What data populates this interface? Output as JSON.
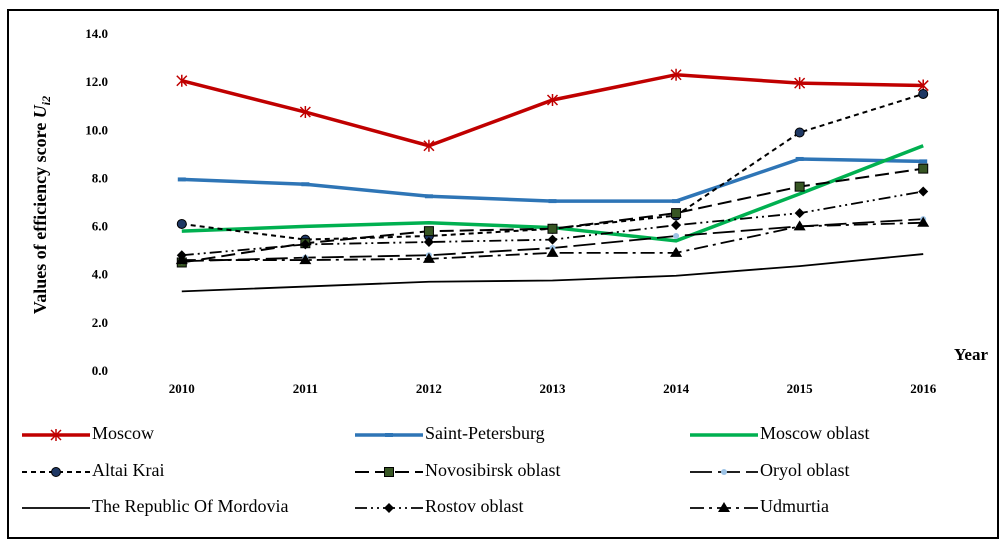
{
  "chart_data": {
    "type": "line",
    "ylabel": "Values of efficiency score",
    "ylabel_symbol": "U",
    "ylabel_subscript": "i2",
    "xlabel": "Year",
    "categories": [
      "2010",
      "2011",
      "2012",
      "2013",
      "2014",
      "2015",
      "2016"
    ],
    "ylim": [
      0,
      14
    ],
    "yticks": [
      {
        "value": 0,
        "label": "0.0"
      },
      {
        "value": 2,
        "label": "2.0"
      },
      {
        "value": 4,
        "label": "4.0"
      },
      {
        "value": 6,
        "label": "6.0"
      },
      {
        "value": 8,
        "label": "8.0"
      },
      {
        "value": 10,
        "label": "10.0"
      },
      {
        "value": 12,
        "label": "12.0"
      },
      {
        "value": 14,
        "label": "14.0"
      }
    ],
    "grid": false,
    "legend": "bottom",
    "series": [
      {
        "name": "Moscow",
        "color": "#c00000",
        "width": 3.5,
        "dash": "solid",
        "marker": "star",
        "values": [
          12.1,
          10.8,
          9.4,
          11.3,
          12.35,
          12.0,
          11.9
        ]
      },
      {
        "name": "Saint-Petersburg",
        "color": "#2e75b6",
        "width": 3.5,
        "dash": "solid",
        "marker": "bar",
        "values": [
          8.0,
          7.8,
          7.3,
          7.1,
          7.1,
          8.85,
          8.75
        ]
      },
      {
        "name": "Moscow oblast",
        "color": "#00b050",
        "width": 3.5,
        "dash": "solid",
        "marker": "none",
        "values": [
          5.85,
          6.05,
          6.2,
          6.0,
          5.45,
          7.4,
          9.4
        ]
      },
      {
        "name": "Altai Krai",
        "color": "#000000",
        "width": 2,
        "dash": "short",
        "marker": "circle",
        "values": [
          6.15,
          5.5,
          5.65,
          5.95,
          6.5,
          9.95,
          11.55
        ]
      },
      {
        "name": "Novosibirsk oblast",
        "color": "#000000",
        "width": 2,
        "dash": "long",
        "marker": "square",
        "values": [
          4.55,
          5.35,
          5.85,
          5.95,
          6.6,
          7.7,
          8.45
        ]
      },
      {
        "name": "Oryol oblast",
        "color": "#000000",
        "width": 1.8,
        "dash": "longer",
        "marker": "dot",
        "marker_color": "#9dc3e6",
        "values": [
          4.6,
          4.75,
          4.85,
          5.15,
          5.65,
          6.05,
          6.35
        ]
      },
      {
        "name": "The Republic Of Mordovia",
        "color": "#000000",
        "width": 1.8,
        "dash": "solid",
        "marker": "none",
        "values": [
          3.35,
          3.55,
          3.75,
          3.8,
          4.0,
          4.4,
          4.9
        ]
      },
      {
        "name": "Rostov oblast",
        "color": "#000000",
        "width": 1.8,
        "dash": "dashdotdot",
        "marker": "diamond",
        "values": [
          4.85,
          5.3,
          5.4,
          5.5,
          6.1,
          6.6,
          7.5
        ]
      },
      {
        "name": "Udmurtia",
        "color": "#000000",
        "width": 1.8,
        "dash": "dashdot",
        "marker": "triangle",
        "values": [
          4.65,
          4.65,
          4.7,
          4.95,
          4.95,
          6.05,
          6.2
        ]
      }
    ]
  }
}
